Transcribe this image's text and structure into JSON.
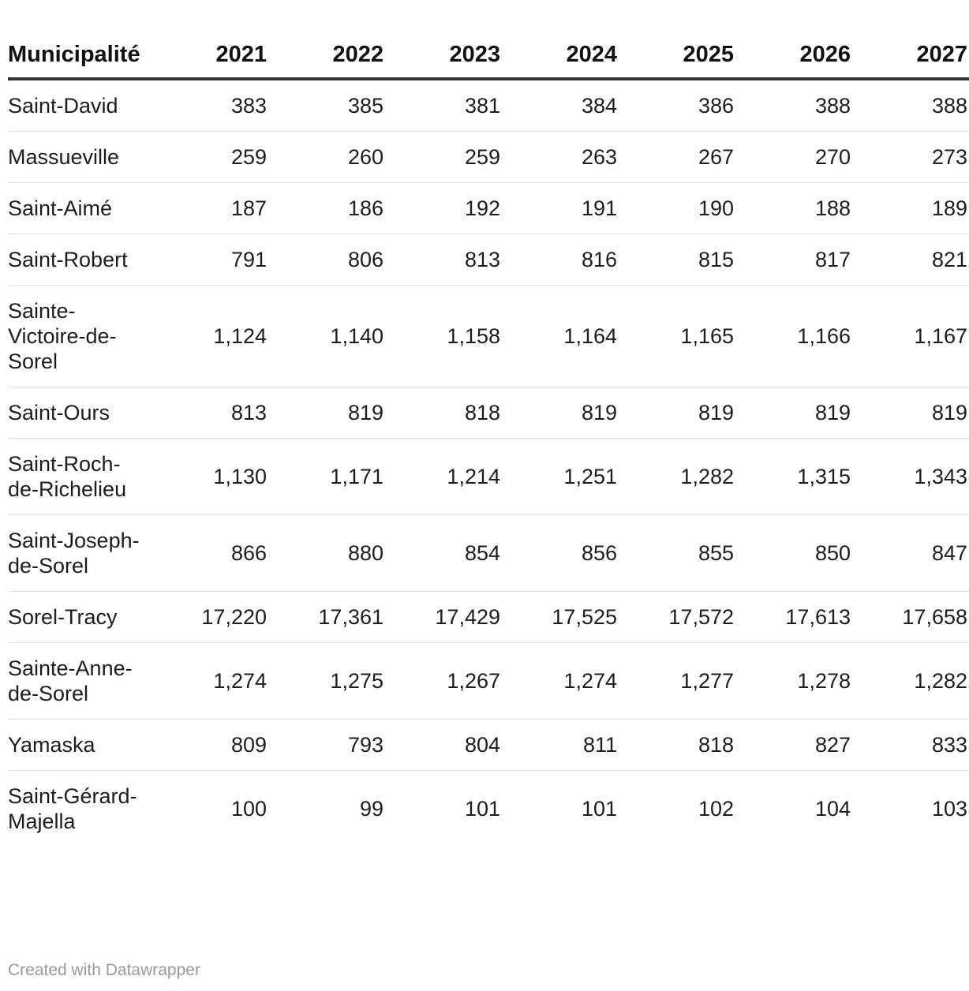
{
  "chart_data": {
    "type": "table",
    "header": [
      "Municipalité",
      "2021",
      "2022",
      "2023",
      "2024",
      "2025",
      "2026",
      "2027"
    ],
    "rows": [
      {
        "name": "Saint-David",
        "values": [
          "383",
          "385",
          "381",
          "384",
          "386",
          "388",
          "388"
        ]
      },
      {
        "name": "Massueville",
        "values": [
          "259",
          "260",
          "259",
          "263",
          "267",
          "270",
          "273"
        ]
      },
      {
        "name": "Saint-Aimé",
        "values": [
          "187",
          "186",
          "192",
          "191",
          "190",
          "188",
          "189"
        ]
      },
      {
        "name": "Saint-Robert",
        "values": [
          "791",
          "806",
          "813",
          "816",
          "815",
          "817",
          "821"
        ]
      },
      {
        "name": "Sainte-Victoire-de-Sorel",
        "values": [
          "1,124",
          "1,140",
          "1,158",
          "1,164",
          "1,165",
          "1,166",
          "1,167"
        ]
      },
      {
        "name": "Saint-Ours",
        "values": [
          "813",
          "819",
          "818",
          "819",
          "819",
          "819",
          "819"
        ]
      },
      {
        "name": "Saint-Roch-de-Richelieu",
        "values": [
          "1,130",
          "1,171",
          "1,214",
          "1,251",
          "1,282",
          "1,315",
          "1,343"
        ]
      },
      {
        "name": "Saint-Joseph-de-Sorel",
        "values": [
          "866",
          "880",
          "854",
          "856",
          "855",
          "850",
          "847"
        ]
      },
      {
        "name": "Sorel-Tracy",
        "values": [
          "17,220",
          "17,361",
          "17,429",
          "17,525",
          "17,572",
          "17,613",
          "17,658"
        ]
      },
      {
        "name": "Sainte-Anne-de-Sorel",
        "values": [
          "1,274",
          "1,275",
          "1,267",
          "1,274",
          "1,277",
          "1,278",
          "1,282"
        ]
      },
      {
        "name": "Yamaska",
        "values": [
          "809",
          "793",
          "804",
          "811",
          "818",
          "827",
          "833"
        ]
      },
      {
        "name": "Saint-Gérard-Majella",
        "values": [
          "100",
          "99",
          "101",
          "101",
          "102",
          "104",
          "103"
        ]
      }
    ]
  },
  "footer": {
    "credit": "Created with Datawrapper"
  }
}
